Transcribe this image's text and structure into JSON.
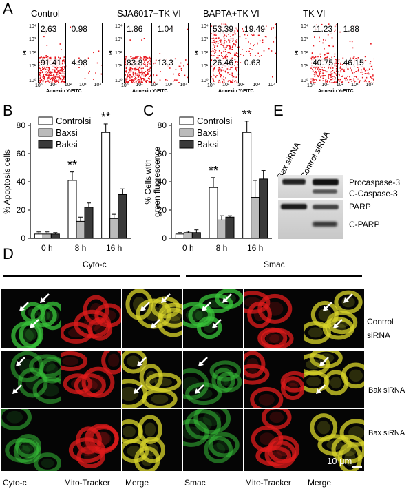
{
  "panel_letters": {
    "a": "A",
    "b": "B",
    "c": "C",
    "d": "D",
    "e": "E"
  },
  "flow_panels": [
    {
      "title": "Control",
      "quadrants": {
        "ul": "2.63",
        "ur": "0.98",
        "ll": "91.41",
        "lr": "4.98"
      }
    },
    {
      "title": "SJA6017+TK VI",
      "quadrants": {
        "ul": "1.86",
        "ur": "1.04",
        "ll": "83.8",
        "lr": "13.3"
      }
    },
    {
      "title": "BAPTA+TK VI",
      "quadrants": {
        "ul": "53.39",
        "ur": "19.49",
        "ll": "26.46",
        "lr": "0.63"
      }
    },
    {
      "title": "TK VI",
      "quadrants": {
        "ul": "11.23",
        "ur": "1.88",
        "ll": "40.75",
        "lr": "46.15"
      }
    }
  ],
  "flow_axis": {
    "x_label": "Annexin Y-FITC",
    "y_label": "PI",
    "ticks": [
      "10⁰",
      "10¹",
      "10²",
      "10³",
      "10⁴"
    ]
  },
  "chart_data": [
    {
      "type": "bar",
      "panel": "B",
      "ylabel": "% Apoptosis cells",
      "categories": [
        "0 h",
        "8 h",
        "16 h"
      ],
      "ylim": [
        0,
        80
      ],
      "yticks": [
        0,
        20,
        40,
        60,
        80
      ],
      "series": [
        {
          "name": "Controlsi",
          "color": "#ffffff",
          "values": [
            3,
            41,
            75
          ],
          "errors": [
            1.5,
            6,
            6
          ]
        },
        {
          "name": "Baxsi",
          "color": "#bbbbbb",
          "values": [
            3,
            12,
            14
          ],
          "errors": [
            1.5,
            3,
            3
          ]
        },
        {
          "name": "Baksi",
          "color": "#3a3a3a",
          "values": [
            3,
            22,
            31
          ],
          "errors": [
            1,
            3,
            4
          ]
        }
      ],
      "annotations": [
        {
          "category": "8 h",
          "text": "**"
        },
        {
          "category": "16 h",
          "text": "**"
        }
      ]
    },
    {
      "type": "bar",
      "panel": "C",
      "ylabel": "% Cells with green fluorescence",
      "categories": [
        "0 h",
        "8 h",
        "16 h"
      ],
      "ylim": [
        0,
        80
      ],
      "yticks": [
        0,
        20,
        40,
        60,
        80
      ],
      "series": [
        {
          "name": "Controlsi",
          "color": "#ffffff",
          "values": [
            3,
            36,
            75
          ],
          "errors": [
            1,
            7,
            8
          ]
        },
        {
          "name": "Baxsi",
          "color": "#bbbbbb",
          "values": [
            4,
            13,
            29
          ],
          "errors": [
            1,
            3,
            12
          ]
        },
        {
          "name": "Baksi",
          "color": "#3a3a3a",
          "values": [
            4,
            15,
            42
          ],
          "errors": [
            2,
            1,
            6
          ]
        }
      ],
      "annotations": [
        {
          "category": "8 h",
          "text": "**"
        },
        {
          "category": "16 h",
          "text": "**"
        }
      ]
    }
  ],
  "western": {
    "lanes": [
      "Bax siRNA",
      "Control siRNA"
    ],
    "bands": [
      "Procaspase-3",
      "C-Caspase-3",
      "PARP",
      "C-PARP"
    ]
  },
  "micro": {
    "section_left": "Cyto-c",
    "section_right": "Smac",
    "row_labels": [
      "Control siRNA",
      "Bak siRNA",
      "Bax siRNA"
    ],
    "col_labels": [
      "Cyto-c",
      "Mito-Tracker",
      "Merge",
      "Smac",
      "Mito-Tracker",
      "Merge"
    ],
    "scale_bar": "10 μm"
  }
}
